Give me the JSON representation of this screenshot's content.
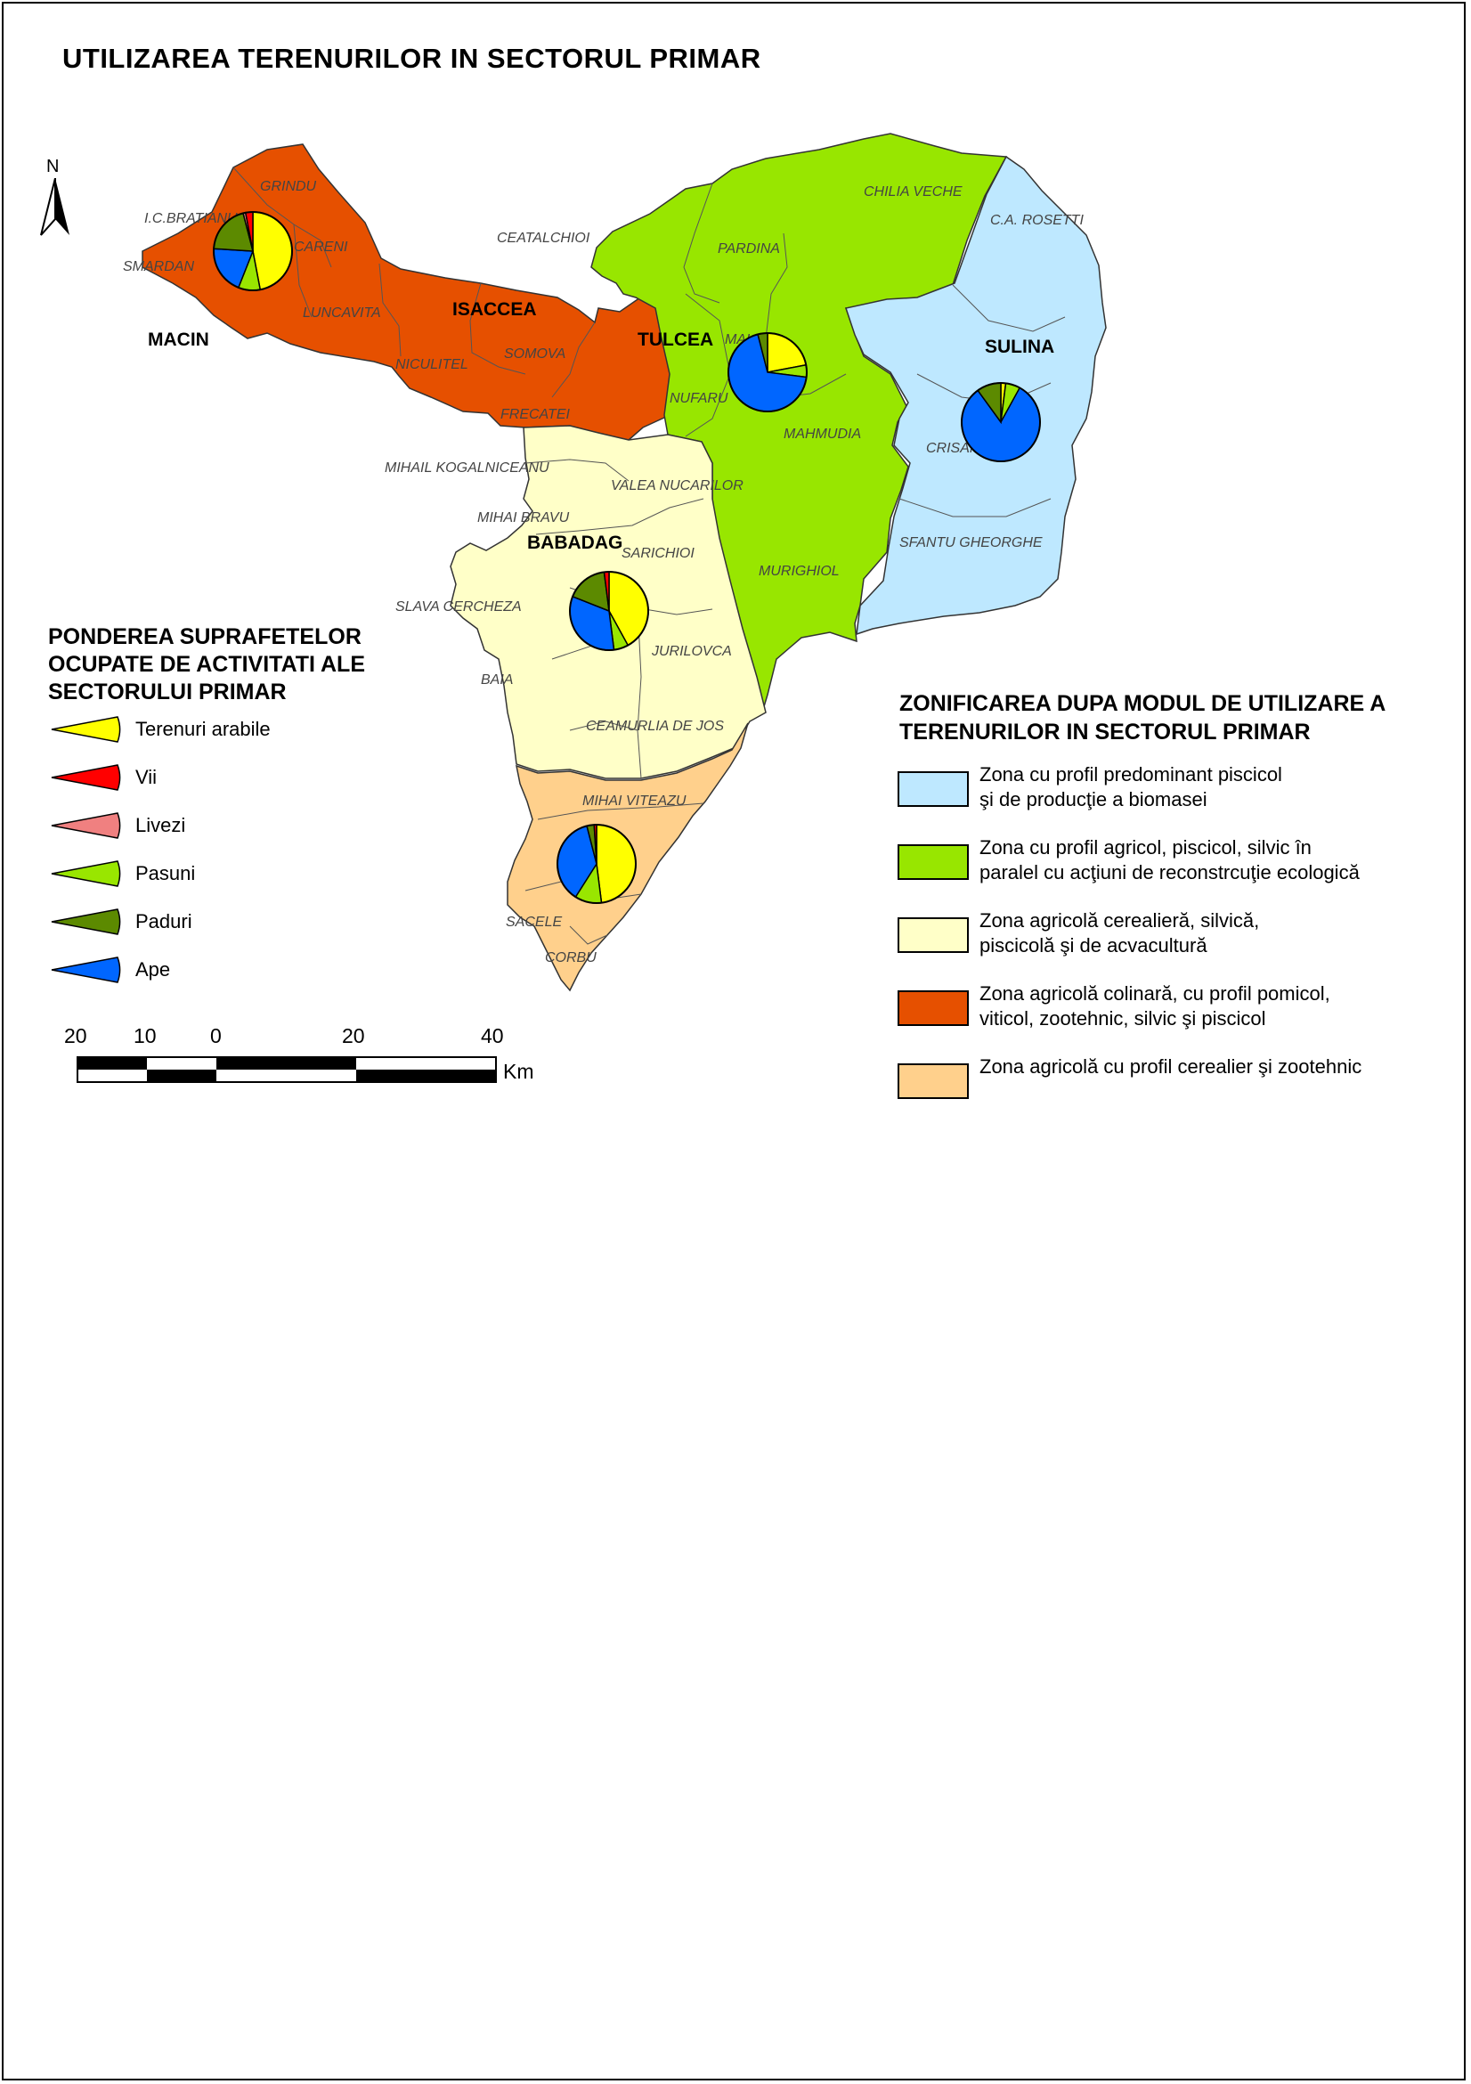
{
  "title": "UTILIZAREA TERENURILOR IN SECTORUL PRIMAR",
  "north_label": "N",
  "pie_legend": {
    "title": "PONDEREA SUPRAFETELOR OCUPATE DE ACTIVITATI ALE SECTORULUI PRIMAR",
    "items": [
      {
        "label": "Terenuri arabile",
        "color": "#ffff00"
      },
      {
        "label": "Vii",
        "color": "#ff0000"
      },
      {
        "label": "Livezi",
        "color": "#f08080"
      },
      {
        "label": "Pasuni",
        "color": "#99e600"
      },
      {
        "label": "Paduri",
        "color": "#5c8a00"
      },
      {
        "label": "Ape",
        "color": "#0066ff"
      }
    ]
  },
  "zone_legend": {
    "title": "ZONIFICAREA DUPA MODUL DE UTILIZARE A TERENURILOR IN SECTORUL PRIMAR",
    "items": [
      {
        "line1": "Zona cu profil predominant piscicol",
        "line2": "şi de producţie a biomasei",
        "color": "#bee8ff"
      },
      {
        "line1": "Zona cu profil agricol, piscicol, silvic în",
        "line2": "paralel cu acţiuni de reconstrcuţie ecologică",
        "color": "#98e600"
      },
      {
        "line1": "Zona agricolă cerealieră, silvică,",
        "line2": "piscicolă şi de acvacultură",
        "color": "#ffffc8"
      },
      {
        "line1": "Zona agricolă colinară, cu profil pomicol,",
        "line2": "viticol, zootehnic, silvic şi piscicol",
        "color": "#e65000"
      },
      {
        "line1": "Zona agricolă cu profil cerealier şi zootehnic",
        "line2": "",
        "color": "#ffd08c"
      }
    ]
  },
  "scalebar": {
    "ticks": [
      "20",
      "10",
      "0",
      "20",
      "40"
    ],
    "unit": "Km"
  },
  "zones": [
    {
      "id": "colinara",
      "color": "#e65000"
    },
    {
      "id": "agricol-ecologic",
      "color": "#98e600"
    },
    {
      "id": "piscicol",
      "color": "#bee8ff"
    },
    {
      "id": "cerealiera",
      "color": "#ffffc8"
    },
    {
      "id": "cerealier-zootehnic",
      "color": "#ffd08c"
    }
  ],
  "city_labels": [
    "MACIN",
    "ISACCEA",
    "TULCEA",
    "SULINA",
    "BABADAG"
  ],
  "commune_labels": [
    "GRINDU",
    "I.C.BRATIANU",
    "CARENI",
    "SMARDAN",
    "LUNCAVITA",
    "CEATALCHIOI",
    "NICULITEL",
    "SOMOVA",
    "FRECATEI",
    "PARDINA",
    "CHILIA VECHE",
    "C.A. ROSETTI",
    "MALIUC",
    "NUFARU",
    "MAHMUDIA",
    "CRISAN",
    "SFANTU GHEORGHE",
    "MURIGHIOL",
    "MIHAIL KOGALNICEANU",
    "VALEA NUCARILOR",
    "MIHAI BRAVU",
    "SARICHIOI",
    "SLAVA CERCHEZA",
    "JURILOVCA",
    "BAIA",
    "CEAMURLIA DE JOS",
    "MIHAI VITEAZU",
    "SACELE",
    "CORBU"
  ],
  "pies": [
    {
      "name": "MACIN",
      "values": {
        "Terenuri arabile": 47,
        "Vii": 3,
        "Livezi": 1,
        "Pasuni": 9,
        "Paduri": 20,
        "Ape": 20
      }
    },
    {
      "name": "TULCEA",
      "values": {
        "Terenuri arabile": 22,
        "Vii": 0,
        "Livezi": 0,
        "Pasuni": 5,
        "Paduri": 4,
        "Ape": 69
      }
    },
    {
      "name": "SULINA",
      "values": {
        "Terenuri arabile": 2,
        "Vii": 0,
        "Livezi": 0,
        "Pasuni": 6,
        "Paduri": 10,
        "Ape": 82
      }
    },
    {
      "name": "BABADAG",
      "values": {
        "Terenuri arabile": 42,
        "Vii": 2,
        "Livezi": 0,
        "Pasuni": 6,
        "Paduri": 17,
        "Ape": 33
      }
    },
    {
      "name": "MIHAI VITEAZU",
      "values": {
        "Terenuri arabile": 48,
        "Vii": 1,
        "Livezi": 0,
        "Pasuni": 11,
        "Paduri": 3,
        "Ape": 37
      }
    }
  ]
}
